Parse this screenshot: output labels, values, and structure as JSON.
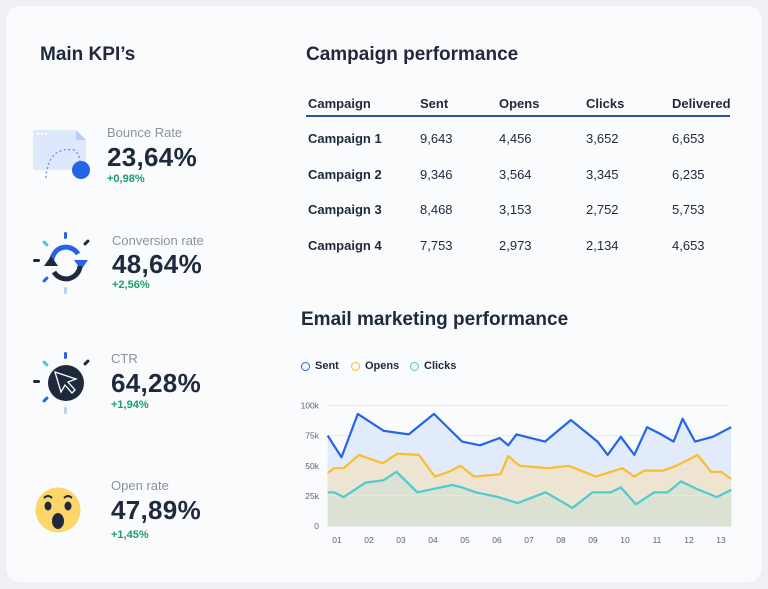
{
  "kpi": {
    "title": "Main KPI’s",
    "items": [
      {
        "label": "Bounce Rate",
        "value": "23,64%",
        "delta": "+0,98%",
        "icon": "bounce-page-icon"
      },
      {
        "label": "Conversion rate",
        "value": "48,64%",
        "delta": "+2,56%",
        "icon": "refresh-cycle-icon"
      },
      {
        "label": "CTR",
        "value": "64,28%",
        "delta": "+1,94%",
        "icon": "cursor-click-icon"
      },
      {
        "label": "Open rate",
        "value": "47,89%",
        "delta": "+1,45%",
        "icon": "surprised-emoji-icon"
      }
    ]
  },
  "campaign": {
    "title": "Campaign performance",
    "columns": [
      "Campaign",
      "Sent",
      "Opens",
      "Clicks",
      "Delivered"
    ],
    "rows": [
      [
        "Campaign 1",
        "9,643",
        "4,456",
        "3,652",
        "6,653"
      ],
      [
        "Campaign 2",
        "9,346",
        "3,564",
        "3,345",
        "6,235"
      ],
      [
        "Campaign 3",
        "8,468",
        "3,153",
        "2,752",
        "5,753"
      ],
      [
        "Campaign 4",
        "7,753",
        "2,973",
        "2,134",
        "4,653"
      ]
    ]
  },
  "email": {
    "title": "Email marketing performance"
  },
  "chart_data": {
    "type": "area",
    "title": "Email marketing performance",
    "legend_position": "top-left",
    "grid": true,
    "x_ticks": [
      "01",
      "02",
      "03",
      "04",
      "05",
      "06",
      "07",
      "08",
      "09",
      "10",
      "11",
      "12",
      "13"
    ],
    "y_ticks": [
      "0",
      "25k",
      "50k",
      "75k",
      "100k"
    ],
    "ylim": [
      0,
      100000
    ],
    "series": [
      {
        "name": "Sent",
        "color": "#2563eb",
        "fill": "#e2ebfb",
        "points": [
          [
            0.71,
            75000
          ],
          [
            1.14,
            57000
          ],
          [
            1.65,
            93000
          ],
          [
            2.46,
            79000
          ],
          [
            3.24,
            76000
          ],
          [
            4.03,
            93000
          ],
          [
            4.91,
            70000
          ],
          [
            5.47,
            67000
          ],
          [
            6.08,
            73000
          ],
          [
            6.35,
            67000
          ],
          [
            6.61,
            76000
          ],
          [
            7.5,
            70000
          ],
          [
            8.31,
            88000
          ],
          [
            9.14,
            70000
          ],
          [
            9.46,
            59000
          ],
          [
            9.87,
            74000
          ],
          [
            10.29,
            59000
          ],
          [
            10.69,
            82000
          ],
          [
            11.13,
            76000
          ],
          [
            11.52,
            70000
          ],
          [
            11.8,
            89000
          ],
          [
            12.19,
            70000
          ],
          [
            12.74,
            74000
          ],
          [
            13.32,
            82000
          ]
        ]
      },
      {
        "name": "Opens",
        "color": "#fbbd2a",
        "fill": "#ede4d2",
        "points": [
          [
            0.71,
            44000
          ],
          [
            0.9,
            48000
          ],
          [
            1.21,
            48000
          ],
          [
            1.68,
            59000
          ],
          [
            2.43,
            52000
          ],
          [
            2.88,
            60000
          ],
          [
            3.56,
            59000
          ],
          [
            4.06,
            41000
          ],
          [
            4.5,
            45000
          ],
          [
            4.86,
            50000
          ],
          [
            5.28,
            41000
          ],
          [
            6.11,
            43000
          ],
          [
            6.35,
            58000
          ],
          [
            6.71,
            50000
          ],
          [
            7.58,
            48000
          ],
          [
            8.25,
            50000
          ],
          [
            9.09,
            41000
          ],
          [
            9.92,
            48000
          ],
          [
            10.29,
            41000
          ],
          [
            10.6,
            46000
          ],
          [
            11.18,
            46000
          ],
          [
            11.6,
            50000
          ],
          [
            12.27,
            59000
          ],
          [
            12.69,
            45000
          ],
          [
            13.0,
            45000
          ],
          [
            13.32,
            39000
          ]
        ]
      },
      {
        "name": "Clicks",
        "color": "#4ecbcb",
        "fill": "#dce2d3",
        "points": [
          [
            0.71,
            28000
          ],
          [
            0.9,
            28000
          ],
          [
            1.21,
            24000
          ],
          [
            1.89,
            36000
          ],
          [
            2.46,
            38000
          ],
          [
            2.86,
            45000
          ],
          [
            3.51,
            28000
          ],
          [
            4.6,
            34000
          ],
          [
            4.91,
            32000
          ],
          [
            5.33,
            28000
          ],
          [
            6.04,
            24000
          ],
          [
            6.64,
            19000
          ],
          [
            7.52,
            28000
          ],
          [
            8.36,
            15000
          ],
          [
            8.99,
            28000
          ],
          [
            9.56,
            28000
          ],
          [
            9.87,
            32000
          ],
          [
            10.34,
            18000
          ],
          [
            10.92,
            28000
          ],
          [
            11.33,
            28000
          ],
          [
            11.75,
            37000
          ],
          [
            12.22,
            31000
          ],
          [
            12.87,
            24000
          ],
          [
            13.32,
            30000
          ]
        ]
      }
    ]
  }
}
